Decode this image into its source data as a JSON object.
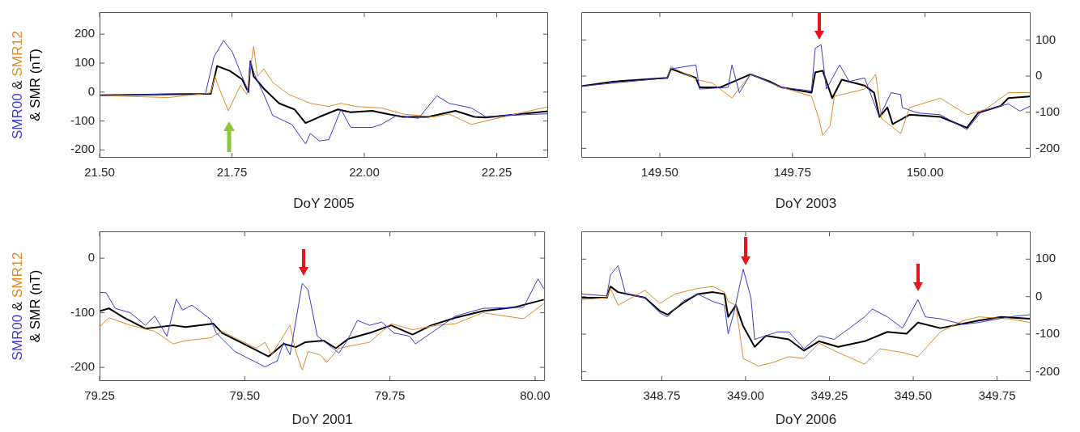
{
  "chart_data": [
    {
      "type": "line",
      "xlabel": "DoY 2005",
      "ylabel": "SMR00 & SMR12 & SMR (nT)",
      "xlim": [
        21.5,
        22.347
      ],
      "ylim": [
        -227,
        276
      ],
      "xticks": [
        {
          "value": 21.5,
          "label": "21.50"
        },
        {
          "value": 21.75,
          "label": "21.75"
        },
        {
          "value": 22,
          "label": "22.00"
        },
        {
          "value": 22.25,
          "label": "22.25"
        }
      ],
      "yticks": [
        -200,
        -100,
        0,
        100,
        200
      ],
      "series": [
        {
          "color": "#3a3acf",
          "x": [
            21.5,
            21.64,
            21.7,
            21.716,
            21.734,
            21.751,
            21.769,
            21.781,
            21.784,
            21.792,
            21.81,
            21.827,
            21.863,
            21.889,
            21.898,
            21.915,
            21.933,
            21.956,
            21.974,
            22.015,
            22.032,
            22.061,
            22.102,
            22.137,
            22.16,
            22.202,
            22.229,
            22.28,
            22.347
          ],
          "values": [
            -12,
            -6,
            -5,
            121,
            178,
            137,
            54,
            2,
            106,
            64,
            -8,
            -81,
            -112,
            -179,
            -143,
            -169,
            -164,
            -60,
            -122,
            -122,
            -112,
            -81,
            -91,
            -13,
            -39,
            -55,
            -85,
            -80,
            -75
          ]
        },
        {
          "color": "#e08a2a",
          "x": [
            21.5,
            21.629,
            21.71,
            21.718,
            21.722,
            21.743,
            21.766,
            21.778,
            21.791,
            21.798,
            21.81,
            21.827,
            21.857,
            21.898,
            21.933,
            21.956,
            21.985,
            22.032,
            22.073,
            22.132,
            22.16,
            22.202,
            22.229,
            22.3,
            22.347
          ],
          "values": [
            -12,
            -19,
            -3,
            54,
            31,
            -65,
            23,
            -8,
            158,
            54,
            80,
            33,
            -8,
            -39,
            -50,
            -39,
            -50,
            -55,
            -76,
            -86,
            -76,
            -112,
            -100,
            -70,
            -51
          ]
        },
        {
          "color": "#000000",
          "x": [
            21.5,
            21.71,
            21.716,
            21.722,
            21.746,
            21.769,
            21.781,
            21.785,
            21.791,
            21.81,
            21.839,
            21.868,
            21.889,
            21.915,
            21.95,
            21.974,
            22.015,
            22.044,
            22.073,
            22.12,
            22.172,
            22.208,
            22.229,
            22.347
          ],
          "values": [
            -11,
            -6,
            43,
            90,
            73,
            44,
            0,
            106,
            54,
            12,
            -39,
            -60,
            -107,
            -86,
            -60,
            -70,
            -65,
            -76,
            -86,
            -86,
            -65,
            -86,
            -88,
            -66
          ]
        }
      ]
    },
    {
      "type": "line",
      "xlabel": "DoY 2003",
      "xlim": [
        149.352,
        150.199
      ],
      "y2lim": [
        -226,
        177
      ],
      "xticks": [
        {
          "value": 149.5,
          "label": "149.50"
        },
        {
          "value": 149.75,
          "label": "149.75"
        },
        {
          "value": 150,
          "label": "150.00"
        }
      ],
      "y2ticks": [
        -200,
        -100,
        0,
        100
      ],
      "series": [
        {
          "axis": "y2",
          "color": "#3a3acf",
          "x": [
            149.352,
            149.514,
            149.521,
            149.568,
            149.575,
            149.629,
            149.636,
            149.65,
            149.671,
            149.729,
            149.786,
            149.793,
            149.804,
            149.814,
            149.839,
            149.857,
            149.886,
            149.914,
            149.936,
            149.954,
            149.957,
            149.986,
            150.029,
            150.079,
            150.107,
            150.157,
            150.179,
            150.199
          ],
          "values": [
            -28,
            -5,
            20,
            31,
            -36,
            -31,
            31,
            -46,
            5,
            -31,
            -41,
            77,
            87,
            -36,
            31,
            -15,
            -5,
            -113,
            -46,
            -51,
            -87,
            -102,
            -107,
            -148,
            -97,
            -77,
            -97,
            -82
          ]
        },
        {
          "axis": "y2",
          "color": "#e08a2a",
          "x": [
            149.514,
            149.521,
            149.571,
            149.6,
            149.636,
            149.671,
            149.729,
            149.786,
            149.8,
            149.807,
            149.821,
            149.829,
            149.886,
            149.907,
            149.918,
            149.936,
            149.954,
            149.971,
            150.029,
            150.079,
            150.114,
            150.157,
            150.199
          ],
          "values": [
            0,
            26,
            -10,
            -20,
            -61,
            5,
            -31,
            -56,
            -118,
            -164,
            -138,
            -56,
            -36,
            5,
            -118,
            -138,
            -159,
            -87,
            -61,
            -107,
            -92,
            -46,
            -46
          ]
        },
        {
          "axis": "y2",
          "color": "#000000",
          "x": [
            149.352,
            149.414,
            149.514,
            149.521,
            149.568,
            149.575,
            149.614,
            149.671,
            149.707,
            149.729,
            149.786,
            149.793,
            149.807,
            149.825,
            149.843,
            149.886,
            149.904,
            149.914,
            149.929,
            149.939,
            149.971,
            150.029,
            150.079,
            150.1,
            150.143,
            150.157,
            150.199
          ],
          "values": [
            -28,
            -15,
            -5,
            20,
            -5,
            -31,
            -31,
            5,
            -15,
            -31,
            -46,
            10,
            15,
            -61,
            -10,
            -26,
            -46,
            -113,
            -87,
            -133,
            -107,
            -113,
            -143,
            -102,
            -82,
            -61,
            -56
          ]
        }
      ]
    },
    {
      "type": "line",
      "xlabel": "DoY 2001",
      "ylabel": "SMR00 & SMR12 & SMR (nT)",
      "xlim": [
        79.25,
        80.017
      ],
      "ylim": [
        -225,
        49
      ],
      "xticks": [
        {
          "value": 79.25,
          "label": "79.25"
        },
        {
          "value": 79.5,
          "label": "79.50"
        },
        {
          "value": 79.75,
          "label": "79.75"
        },
        {
          "value": 80,
          "label": "80.00"
        }
      ],
      "yticks": [
        -200,
        -100,
        0
      ],
      "series": [
        {
          "color": "#3a3acf",
          "x": [
            79.25,
            79.261,
            79.277,
            79.303,
            79.329,
            79.345,
            79.366,
            79.382,
            79.393,
            79.409,
            79.441,
            79.451,
            79.483,
            79.535,
            79.556,
            79.567,
            79.578,
            79.599,
            79.609,
            79.625,
            79.652,
            79.662,
            79.678,
            79.694,
            79.715,
            79.736,
            79.757,
            79.784,
            79.794,
            79.821,
            79.863,
            79.91,
            79.98,
            80.005,
            80.015
          ],
          "values": [
            -63,
            -63,
            -92,
            -100,
            -123,
            -106,
            -143,
            -75,
            -95,
            -86,
            -112,
            -137,
            -171,
            -199,
            -188,
            -154,
            -177,
            -46,
            -58,
            -143,
            -165,
            -174,
            -148,
            -114,
            -123,
            -117,
            -137,
            -143,
            -157,
            -137,
            -106,
            -92,
            -90,
            -38,
            -56
          ]
        },
        {
          "color": "#e08a2a",
          "x": [
            79.25,
            79.266,
            79.303,
            79.345,
            79.377,
            79.398,
            79.441,
            79.461,
            79.483,
            79.52,
            79.535,
            79.546,
            79.578,
            79.588,
            79.599,
            79.609,
            79.63,
            79.641,
            79.662,
            79.715,
            79.752,
            79.789,
            79.831,
            79.863,
            79.91,
            79.98,
            80.015
          ],
          "values": [
            -126,
            -109,
            -123,
            -134,
            -157,
            -151,
            -146,
            -134,
            -146,
            -165,
            -154,
            -177,
            -123,
            -171,
            -205,
            -171,
            -177,
            -191,
            -165,
            -154,
            -120,
            -131,
            -123,
            -120,
            -100,
            -111,
            -83
          ]
        },
        {
          "color": "#000000",
          "x": [
            79.25,
            79.266,
            79.292,
            79.329,
            79.377,
            79.398,
            79.446,
            79.461,
            79.504,
            79.541,
            79.567,
            79.588,
            79.604,
            79.636,
            79.657,
            79.678,
            79.715,
            79.752,
            79.789,
            79.821,
            79.863,
            79.91,
            79.964,
            80.015
          ],
          "values": [
            -97,
            -92,
            -109,
            -129,
            -123,
            -126,
            -120,
            -137,
            -160,
            -180,
            -157,
            -163,
            -154,
            -151,
            -165,
            -148,
            -137,
            -123,
            -140,
            -123,
            -109,
            -97,
            -90,
            -76
          ]
        }
      ]
    },
    {
      "type": "line",
      "xlabel": "DoY 2006",
      "xlim": [
        348.51,
        349.85
      ],
      "y2lim": [
        -225,
        174
      ],
      "xticks": [
        {
          "value": 348.75,
          "label": "348.75"
        },
        {
          "value": 349,
          "label": "349.00"
        },
        {
          "value": 349.25,
          "label": "349.25"
        },
        {
          "value": 349.5,
          "label": "349.50"
        },
        {
          "value": 349.75,
          "label": "349.75"
        }
      ],
      "y2ticks": [
        -200,
        -100,
        0,
        100
      ],
      "series": [
        {
          "axis": "y2",
          "color": "#3a3acf",
          "x": [
            348.51,
            348.586,
            348.597,
            348.62,
            348.642,
            348.7,
            348.744,
            348.767,
            348.812,
            348.857,
            348.903,
            348.937,
            348.948,
            348.965,
            348.993,
            349.016,
            349.027,
            349.095,
            349.129,
            349.174,
            349.219,
            349.264,
            349.31,
            349.355,
            349.378,
            349.423,
            349.468,
            349.514,
            349.536,
            349.581,
            349.649,
            349.695,
            349.785,
            349.85
          ],
          "values": [
            7,
            2,
            58,
            83,
            7,
            -3,
            -43,
            -54,
            -13,
            7,
            -13,
            -23,
            -99,
            -43,
            73,
            -3,
            -114,
            -94,
            -94,
            -139,
            -104,
            -114,
            -84,
            -54,
            -33,
            -54,
            -84,
            -8,
            -54,
            -59,
            -74,
            -69,
            -54,
            -48
          ]
        },
        {
          "axis": "y2",
          "color": "#e08a2a",
          "x": [
            348.51,
            348.586,
            348.597,
            348.62,
            348.7,
            348.744,
            348.789,
            348.857,
            348.903,
            348.937,
            348.948,
            348.971,
            348.993,
            349.038,
            349.084,
            349.129,
            349.174,
            349.219,
            349.276,
            349.355,
            349.4,
            349.468,
            349.514,
            349.581,
            349.649,
            349.695,
            349.785,
            349.85
          ],
          "values": [
            -8,
            -3,
            22,
            -23,
            17,
            -18,
            7,
            22,
            27,
            12,
            -13,
            -23,
            -165,
            -185,
            -175,
            -160,
            -165,
            -124,
            -149,
            -180,
            -139,
            -149,
            -160,
            -94,
            -64,
            -54,
            -59,
            -69
          ]
        },
        {
          "axis": "y2",
          "color": "#000000",
          "x": [
            348.51,
            348.586,
            348.597,
            348.62,
            348.7,
            348.744,
            348.767,
            348.812,
            348.857,
            348.903,
            348.937,
            348.948,
            348.971,
            348.993,
            349.027,
            349.061,
            349.129,
            349.174,
            349.219,
            349.276,
            349.355,
            349.423,
            349.48,
            349.514,
            349.581,
            349.695,
            349.762,
            349.85
          ],
          "values": [
            -3,
            -3,
            27,
            12,
            -3,
            -38,
            -48,
            -18,
            7,
            12,
            7,
            -54,
            -23,
            -79,
            -134,
            -104,
            -114,
            -144,
            -119,
            -134,
            -119,
            -94,
            -99,
            -69,
            -84,
            -64,
            -54,
            -59
          ]
        }
      ]
    }
  ]
}
